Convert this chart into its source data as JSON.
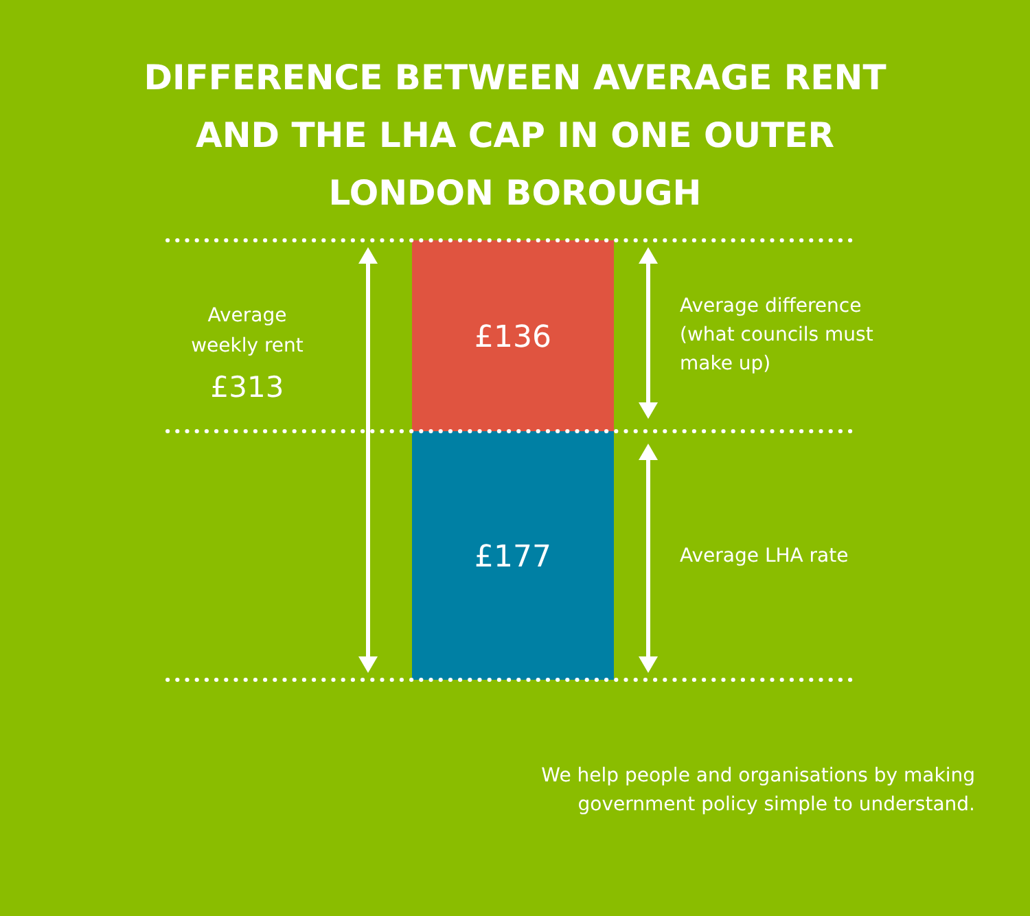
{
  "chart_data": {
    "type": "bar",
    "title": "DIFFERENCE BETWEEN AVERAGE RENT AND THE LHA CAP IN ONE OUTER LONDON BOROUGH",
    "stacked": true,
    "categories": [
      null
    ],
    "series": [
      {
        "name": "Average LHA rate",
        "color": "#0080a4",
        "values": [
          177
        ],
        "value_labels": [
          "£177"
        ]
      },
      {
        "name": "Average difference (what councils must make up)",
        "color": "#e05440",
        "values": [
          136
        ],
        "value_labels": [
          "£136"
        ]
      }
    ],
    "annotations": [
      "Average weekly rent",
      "£313",
      "We help people and organisations by making government policy simple to understand."
    ],
    "ref_lines": [
      {
        "axis": "y",
        "value": 313,
        "color": "#ffffff",
        "line_style": "dotted"
      },
      {
        "axis": "y",
        "value": 177,
        "color": "#ffffff",
        "line_style": "dotted"
      },
      {
        "axis": "y",
        "value": 0,
        "color": "#ffffff",
        "line_style": "dotted"
      }
    ],
    "legend": false,
    "grid": false
  }
}
